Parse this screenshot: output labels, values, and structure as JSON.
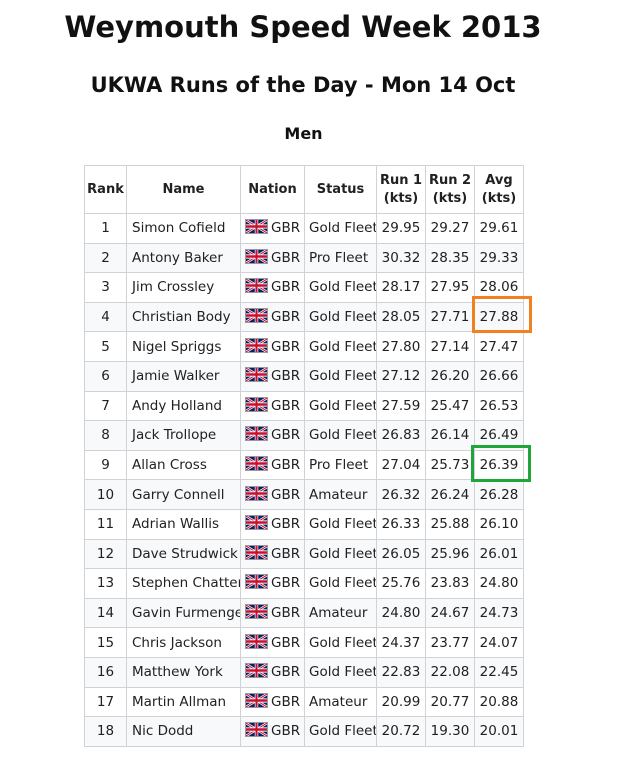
{
  "title": "Weymouth Speed Week 2013",
  "subtitle": "UKWA Runs of the Day - Mon 14 Oct",
  "section": "Men",
  "table": {
    "headers": {
      "rank": "Rank",
      "name": "Name",
      "nation": "Nation",
      "status": "Status",
      "run1": "Run 1",
      "run1_unit": "(kts)",
      "run2": "Run 2",
      "run2_unit": "(kts)",
      "avg": "Avg",
      "avg_unit": "(kts)"
    },
    "flag_icon": "uk-flag-icon",
    "highlight_colors": {
      "orange": "#f28021",
      "green": "#1fa53a"
    },
    "rows": [
      {
        "rank": "1",
        "name": "Simon Cofield",
        "nation": "GBR",
        "status": "Gold Fleet",
        "run1": "29.95",
        "run2": "29.27",
        "avg": "29.61"
      },
      {
        "rank": "2",
        "name": "Antony Baker",
        "nation": "GBR",
        "status": "Pro Fleet",
        "run1": "30.32",
        "run2": "28.35",
        "avg": "29.33"
      },
      {
        "rank": "3",
        "name": "Jim Crossley",
        "nation": "GBR",
        "status": "Gold Fleet",
        "run1": "28.17",
        "run2": "27.95",
        "avg": "28.06"
      },
      {
        "rank": "4",
        "name": "Christian Body",
        "nation": "GBR",
        "status": "Gold Fleet",
        "run1": "28.05",
        "run2": "27.71",
        "avg": "27.88"
      },
      {
        "rank": "5",
        "name": "Nigel Spriggs",
        "nation": "GBR",
        "status": "Gold Fleet",
        "run1": "27.80",
        "run2": "27.14",
        "avg": "27.47"
      },
      {
        "rank": "6",
        "name": "Jamie Walker",
        "nation": "GBR",
        "status": "Gold Fleet",
        "run1": "27.12",
        "run2": "26.20",
        "avg": "26.66"
      },
      {
        "rank": "7",
        "name": "Andy Holland",
        "nation": "GBR",
        "status": "Gold Fleet",
        "run1": "27.59",
        "run2": "25.47",
        "avg": "26.53"
      },
      {
        "rank": "8",
        "name": "Jack Trollope",
        "nation": "GBR",
        "status": "Gold Fleet",
        "run1": "26.83",
        "run2": "26.14",
        "avg": "26.49"
      },
      {
        "rank": "9",
        "name": "Allan Cross",
        "nation": "GBR",
        "status": "Pro Fleet",
        "run1": "27.04",
        "run2": "25.73",
        "avg": "26.39"
      },
      {
        "rank": "10",
        "name": "Garry Connell",
        "nation": "GBR",
        "status": "Amateur",
        "run1": "26.32",
        "run2": "26.24",
        "avg": "26.28"
      },
      {
        "rank": "11",
        "name": "Adrian Wallis",
        "nation": "GBR",
        "status": "Gold Fleet",
        "run1": "26.33",
        "run2": "25.88",
        "avg": "26.10"
      },
      {
        "rank": "12",
        "name": "Dave Strudwick",
        "nation": "GBR",
        "status": "Gold Fleet",
        "run1": "26.05",
        "run2": "25.96",
        "avg": "26.01"
      },
      {
        "rank": "13",
        "name": "Stephen Chatten",
        "nation": "GBR",
        "status": "Gold Fleet",
        "run1": "25.76",
        "run2": "23.83",
        "avg": "24.80"
      },
      {
        "rank": "14",
        "name": "Gavin Furmenger",
        "nation": "GBR",
        "status": "Amateur",
        "run1": "24.80",
        "run2": "24.67",
        "avg": "24.73"
      },
      {
        "rank": "15",
        "name": "Chris Jackson",
        "nation": "GBR",
        "status": "Gold Fleet",
        "run1": "24.37",
        "run2": "23.77",
        "avg": "24.07"
      },
      {
        "rank": "16",
        "name": "Matthew York",
        "nation": "GBR",
        "status": "Gold Fleet",
        "run1": "22.83",
        "run2": "22.08",
        "avg": "22.45"
      },
      {
        "rank": "17",
        "name": "Martin Allman",
        "nation": "GBR",
        "status": "Amateur",
        "run1": "20.99",
        "run2": "20.77",
        "avg": "20.88"
      },
      {
        "rank": "18",
        "name": "Nic Dodd",
        "nation": "GBR",
        "status": "Gold Fleet",
        "run1": "20.72",
        "run2": "19.30",
        "avg": "20.01"
      }
    ]
  }
}
